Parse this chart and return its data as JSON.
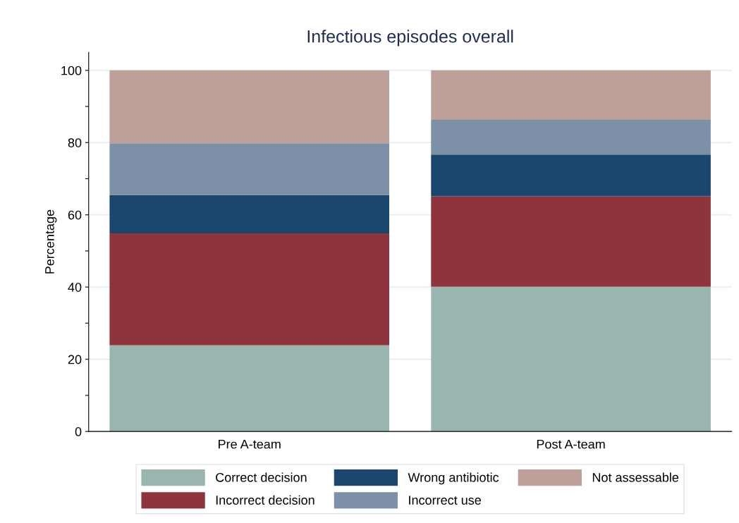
{
  "chart_data": {
    "type": "bar",
    "title": "Infectious episodes overall",
    "ylabel": "Percentage",
    "categories": [
      "Pre A-team",
      "Post A-team"
    ],
    "stacked": true,
    "series": [
      {
        "name": "Correct decision",
        "color": "#98b5b0",
        "values": [
          23.9,
          40.1
        ]
      },
      {
        "name": "Incorrect decision",
        "color": "#8e343c",
        "values": [
          31.0,
          25.0
        ]
      },
      {
        "name": "Wrong antibiotic",
        "color": "#1b476f",
        "values": [
          10.6,
          11.6
        ]
      },
      {
        "name": "Incorrect use",
        "color": "#7c91a8",
        "values": [
          14.3,
          9.6
        ]
      },
      {
        "name": "Not assessable",
        "color": "#bea09a",
        "values": [
          20.2,
          13.7
        ]
      }
    ],
    "ylim": [
      0,
      105
    ],
    "yticks": [
      0,
      {
        "value": 10,
        "label": null
      },
      20,
      {
        "value": 30,
        "label": null
      },
      40,
      {
        "value": 50,
        "label": null
      },
      60,
      {
        "value": 70,
        "label": null
      },
      80,
      {
        "value": 90,
        "label": null
      },
      100
    ],
    "grid": "y",
    "legend": "bottom"
  }
}
